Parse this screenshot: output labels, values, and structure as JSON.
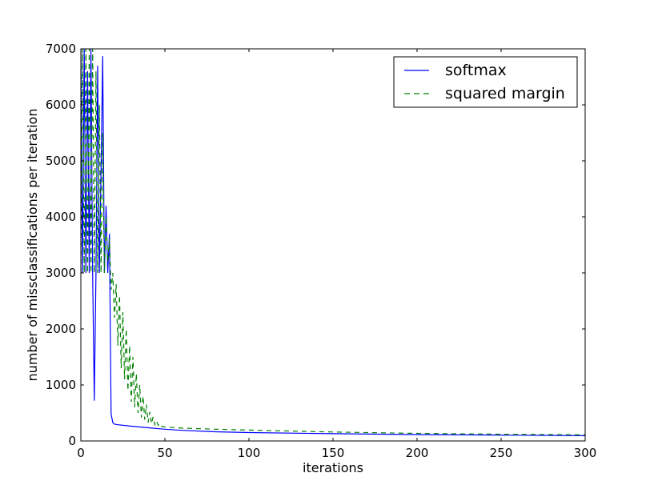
{
  "chart_data": {
    "type": "line",
    "title": "",
    "xlabel": "iterations",
    "ylabel": "number of missclassifications per iteration",
    "xlim": [
      0,
      300
    ],
    "ylim": [
      0,
      7000
    ],
    "x_ticks": [
      "0",
      "50",
      "100",
      "150",
      "200",
      "250",
      "300"
    ],
    "y_ticks": [
      "0",
      "1000",
      "2000",
      "3000",
      "4000",
      "5000",
      "6000",
      "7000"
    ],
    "grid": false,
    "legend_position": "top-right",
    "series": [
      {
        "name": "softmax",
        "color": "#0000ff",
        "style": "solid",
        "x": [
          0,
          1,
          2,
          3,
          4,
          5,
          6,
          7,
          8,
          9,
          10,
          11,
          12,
          13,
          14,
          15,
          16,
          17,
          18,
          19,
          20,
          22,
          25,
          30,
          35,
          40,
          50,
          60,
          80,
          100,
          150,
          200,
          250,
          300
        ],
        "y": [
          7000,
          3000,
          7000,
          3000,
          6600,
          3000,
          7000,
          3000,
          720,
          3000,
          6700,
          3000,
          4800,
          6870,
          3000,
          4200,
          3000,
          3700,
          480,
          330,
          300,
          290,
          280,
          265,
          250,
          235,
          210,
          190,
          165,
          150,
          130,
          115,
          105,
          95
        ]
      },
      {
        "name": "squared margin",
        "color": "#008000",
        "style": "dashed",
        "x": [
          0,
          1,
          2,
          3,
          4,
          5,
          6,
          7,
          8,
          9,
          10,
          11,
          12,
          13,
          14,
          15,
          16,
          17,
          18,
          19,
          20,
          21,
          22,
          23,
          24,
          25,
          26,
          27,
          28,
          29,
          30,
          31,
          32,
          33,
          34,
          35,
          36,
          37,
          38,
          39,
          40,
          41,
          42,
          43,
          44,
          45,
          46,
          47,
          48,
          50,
          55,
          60,
          80,
          100,
          150,
          200,
          250,
          300
        ],
        "y": [
          3000,
          7000,
          3000,
          7000,
          3000,
          7000,
          3000,
          7000,
          3000,
          6600,
          3000,
          6000,
          3000,
          5500,
          3000,
          4000,
          3200,
          3600,
          2700,
          3000,
          2200,
          2800,
          1700,
          2600,
          1300,
          2300,
          1100,
          2000,
          900,
          1700,
          700,
          1500,
          600,
          1200,
          500,
          1000,
          420,
          800,
          380,
          650,
          330,
          520,
          310,
          430,
          290,
          360,
          280,
          310,
          260,
          250,
          240,
          230,
          210,
          195,
          160,
          135,
          120,
          110
        ]
      }
    ]
  }
}
